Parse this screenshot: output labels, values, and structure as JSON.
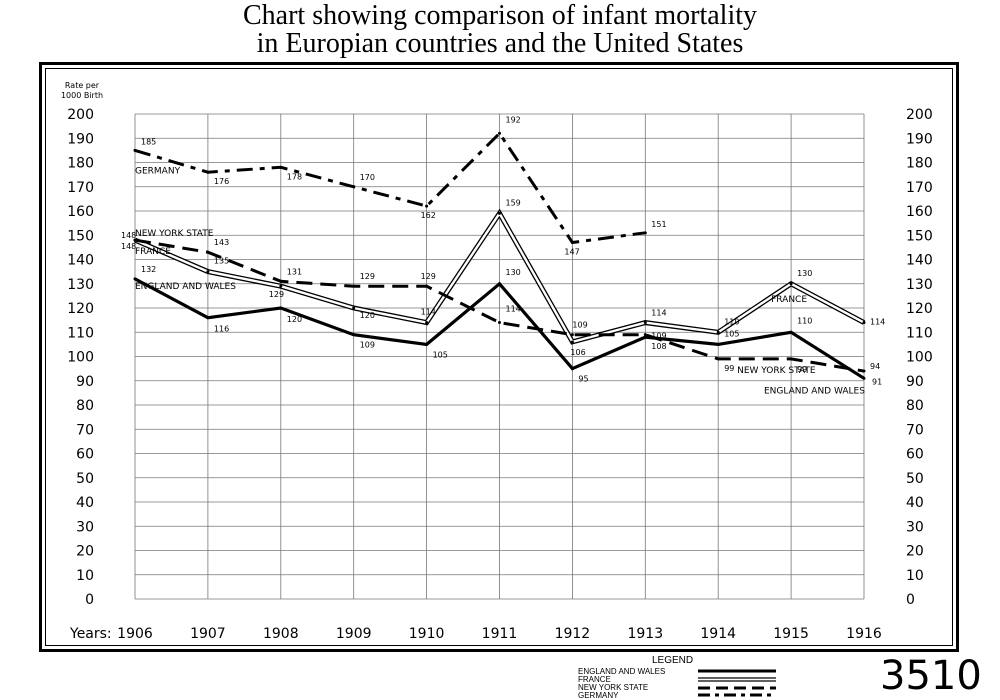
{
  "title_lines": [
    "Chart showing comparison of infant mortality",
    "in Europian countries and the United States"
  ],
  "figure_number": "3510",
  "legend": {
    "title": "LEGEND",
    "items": [
      "ENGLAND AND WALES",
      "FRANCE",
      "NEW YORK STATE",
      "GERMANY"
    ]
  },
  "chart_data": {
    "type": "line",
    "ylabel": "Rate per\n1000 Birth",
    "xlabel": "Years:",
    "categories": [
      "1906",
      "1907",
      "1908",
      "1909",
      "1910",
      "1911",
      "1912",
      "1913",
      "1914",
      "1915",
      "1916"
    ],
    "ylim": [
      0,
      200
    ],
    "yticks": [
      0,
      10,
      20,
      30,
      40,
      50,
      60,
      70,
      80,
      90,
      100,
      110,
      120,
      130,
      140,
      150,
      160,
      170,
      180,
      190,
      200
    ],
    "ytick_labels": [
      "0",
      "10",
      "20",
      "30",
      "40",
      "50",
      "60",
      "70",
      "80",
      "90",
      "100",
      "110",
      "120",
      "130",
      "140",
      "150",
      "160",
      "170",
      "180",
      "190",
      "200"
    ],
    "grid": true,
    "legend_position": "bottom",
    "series": [
      {
        "name": "ENGLAND AND WALES",
        "style": "solid-thick",
        "values": [
          132,
          116,
          120,
          109,
          105,
          130,
          95,
          108,
          105,
          110,
          91
        ],
        "labels": [
          "132",
          "116",
          "120",
          "109",
          "105",
          "130",
          "95",
          "108",
          "105",
          "110",
          "91"
        ]
      },
      {
        "name": "FRANCE",
        "style": "double",
        "values": [
          148,
          135,
          129,
          120,
          114,
          159,
          106,
          114,
          110,
          130,
          114
        ],
        "labels": [
          "148",
          "135",
          "129",
          "120",
          "114",
          "159",
          "106",
          "114",
          "110",
          "130",
          "114"
        ]
      },
      {
        "name": "NEW YORK STATE",
        "style": "dashed",
        "values": [
          148,
          143,
          131,
          129,
          129,
          114,
          109,
          109,
          99,
          99,
          94
        ],
        "labels": [
          "148",
          "143",
          "131",
          "129",
          "129",
          "114",
          "109",
          "109",
          "99",
          "99",
          "94"
        ]
      },
      {
        "name": "GERMANY",
        "style": "dash-dot",
        "values": [
          185,
          176,
          178,
          170,
          162,
          192,
          147,
          151,
          null,
          null,
          null
        ],
        "labels": [
          "185",
          "176",
          "178",
          "170",
          "162",
          "192",
          "147",
          "151",
          "",
          "",
          ""
        ]
      }
    ],
    "series_labels": [
      {
        "text": "GERMANY",
        "series": 3,
        "at": "1906"
      },
      {
        "text": "NEW YORK STATE",
        "series": 2,
        "at": "1906"
      },
      {
        "text": "FRANCE",
        "series": 1,
        "at": "1906"
      },
      {
        "text": "ENGLAND AND WALES",
        "series": 0,
        "at": "1906"
      },
      {
        "text": "FRANCE",
        "series": 1,
        "at": "1915"
      },
      {
        "text": "NEW YORK STATE",
        "series": 2,
        "at": "1915"
      },
      {
        "text": "ENGLAND AND WALES",
        "series": 0,
        "at": "1916"
      }
    ]
  }
}
